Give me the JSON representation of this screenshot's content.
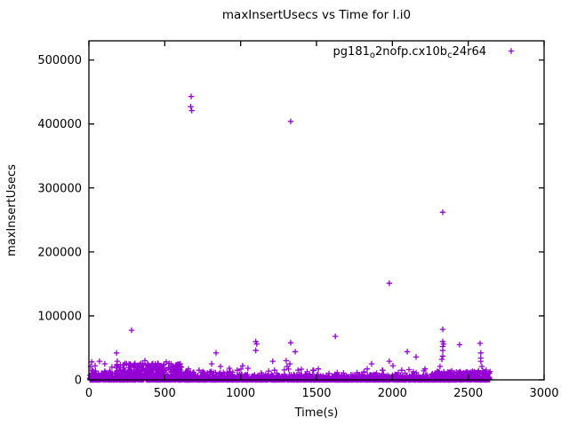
{
  "chart_data": {
    "type": "scatter",
    "title": "maxInsertUsecs vs Time for I.i0",
    "xlabel": "Time(s)",
    "ylabel": "maxInsertUsecs",
    "grid": false,
    "legend": {
      "position": "top-right-inside",
      "marker": "plus",
      "label_plain": "pg181_o2nofp.cx10b_c24r64",
      "label_parts": [
        {
          "text": "pg181",
          "subscript": false
        },
        {
          "text": "o",
          "subscript": true
        },
        {
          "text": "2nofp.cx10b",
          "subscript": false
        },
        {
          "text": "c",
          "subscript": true
        },
        {
          "text": "24r64",
          "subscript": false
        }
      ]
    },
    "marker_color": "#9400D3",
    "axis_color": "#000000",
    "xlim": [
      0,
      3000
    ],
    "ylim": [
      0,
      530000
    ],
    "x_ticks": [
      0,
      500,
      1000,
      1500,
      2000,
      2500,
      3000
    ],
    "y_ticks": [
      0,
      100000,
      200000,
      300000,
      400000,
      500000
    ],
    "series_name": "pg181_o2nofp.cx10b_c24r64",
    "outlier_points": [
      [
        674,
        443000
      ],
      [
        671,
        427000
      ],
      [
        678,
        421000
      ],
      [
        1330,
        404000
      ],
      [
        2332,
        262000
      ],
      [
        1980,
        151000
      ],
      [
        281,
        77500
      ],
      [
        2332,
        79000
      ],
      [
        1624,
        68000
      ],
      [
        1100,
        60000
      ],
      [
        1106,
        56000
      ],
      [
        1100,
        46000
      ],
      [
        1330,
        58000
      ],
      [
        1360,
        44000
      ],
      [
        2332,
        60000
      ],
      [
        2338,
        56000
      ],
      [
        2332,
        52000
      ],
      [
        2332,
        46000
      ],
      [
        2332,
        37000
      ],
      [
        2326,
        32000
      ],
      [
        2443,
        55000
      ],
      [
        2578,
        57000
      ],
      [
        2583,
        42000
      ],
      [
        2583,
        34000
      ],
      [
        2583,
        29000
      ],
      [
        2098,
        44000
      ],
      [
        2156,
        36000
      ],
      [
        12,
        21000
      ],
      [
        18,
        28000
      ],
      [
        23,
        15000
      ],
      [
        41,
        22000
      ],
      [
        70,
        29000
      ],
      [
        105,
        25000
      ],
      [
        152,
        20000
      ],
      [
        182,
        42000
      ],
      [
        187,
        29000
      ],
      [
        293,
        22000
      ],
      [
        369,
        30000
      ],
      [
        457,
        25000
      ],
      [
        510,
        28000
      ],
      [
        545,
        22000
      ],
      [
        609,
        20000
      ],
      [
        656,
        17000
      ],
      [
        726,
        15000
      ],
      [
        809,
        25000
      ],
      [
        838,
        42000
      ],
      [
        867,
        21000
      ],
      [
        926,
        18000
      ],
      [
        978,
        15000
      ],
      [
        1013,
        22000
      ],
      [
        1048,
        18000
      ],
      [
        1212,
        29000
      ],
      [
        1224,
        15000
      ],
      [
        1300,
        30000
      ],
      [
        1306,
        21000
      ],
      [
        1324,
        25000
      ],
      [
        1512,
        17000
      ],
      [
        1582,
        10000
      ],
      [
        1728,
        8000
      ],
      [
        1834,
        17000
      ],
      [
        1863,
        25000
      ],
      [
        1980,
        29000
      ],
      [
        2004,
        22000
      ],
      [
        2062,
        15000
      ],
      [
        2215,
        17000
      ],
      [
        2314,
        21000
      ],
      [
        2391,
        14000
      ],
      [
        2508,
        11000
      ],
      [
        2590,
        21000
      ],
      [
        2596,
        14000
      ],
      [
        2619,
        9000
      ]
    ],
    "dense_band": {
      "description": "Dense mass of samples hugging y=0 from t=0 to t~2640; thickest (up to ~26000) between t~180-610; thin tail 0-9000 after t~950 with sporadic spikes; clusters near t~2300-2640.",
      "seed": 42,
      "segments": [
        {
          "t0": 5,
          "t1": 180,
          "count": 130,
          "vmin": 0,
          "vmax": 14000,
          "bias": 2.2
        },
        {
          "t0": 180,
          "t1": 610,
          "count": 450,
          "vmin": 0,
          "vmax": 26000,
          "bias": 1.9
        },
        {
          "t0": 610,
          "t1": 950,
          "count": 260,
          "vmin": 0,
          "vmax": 13000,
          "bias": 2.3
        },
        {
          "t0": 950,
          "t1": 1650,
          "count": 400,
          "vmin": 0,
          "vmax": 8500,
          "bias": 2.6
        },
        {
          "t0": 1650,
          "t1": 2260,
          "count": 360,
          "vmin": 0,
          "vmax": 8500,
          "bias": 2.6
        },
        {
          "t0": 2260,
          "t1": 2645,
          "count": 340,
          "vmin": 0,
          "vmax": 13000,
          "bias": 2.1
        },
        {
          "t0": 950,
          "t1": 2645,
          "count": 45,
          "vmin": 8000,
          "vmax": 17000,
          "bias": 1.5
        }
      ],
      "zero_line": {
        "t0": 5,
        "t1": 2645,
        "count": 1300,
        "vmax": 1600
      }
    }
  }
}
